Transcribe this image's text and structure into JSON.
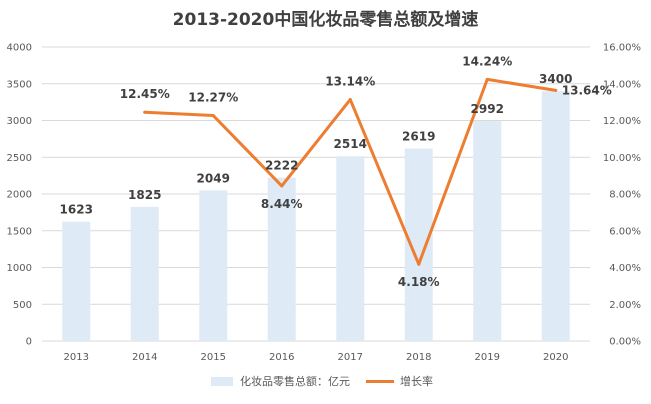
{
  "chart_data": {
    "type": "bar",
    "title": "2013-2020中国化妆品零售总额及增速",
    "categories": [
      "2013",
      "2014",
      "2015",
      "2016",
      "2017",
      "2018",
      "2019",
      "2020"
    ],
    "series": [
      {
        "name": "化妆品零售总额：亿元",
        "type": "bar",
        "axis": "left",
        "color": "#DEEBF7",
        "values": [
          1623,
          1825,
          2049,
          2222,
          2514,
          2619,
          2992,
          3400
        ],
        "labels": [
          "1623",
          "1825",
          "2049",
          "2222",
          "2514",
          "2619",
          "2992",
          "3400"
        ]
      },
      {
        "name": "增长率",
        "type": "line",
        "axis": "right",
        "color": "#ED7D31",
        "values": [
          null,
          12.45,
          12.27,
          8.44,
          13.14,
          4.18,
          14.24,
          13.64
        ],
        "labels": [
          "",
          "12.45%",
          "12.27%",
          "8.44%",
          "13.14%",
          "4.18%",
          "14.24%",
          "13.64%"
        ]
      }
    ],
    "y_left": {
      "min": 0,
      "max": 4000,
      "step": 500,
      "ticks": [
        "0",
        "500",
        "1000",
        "1500",
        "2000",
        "2500",
        "3000",
        "3500",
        "4000"
      ]
    },
    "y_right": {
      "min": 0,
      "max": 16,
      "step": 2,
      "ticks": [
        "0.00%",
        "2.00%",
        "4.00%",
        "6.00%",
        "8.00%",
        "10.00%",
        "12.00%",
        "14.00%",
        "16.00%"
      ]
    },
    "grid": true,
    "legend": "bottom"
  }
}
